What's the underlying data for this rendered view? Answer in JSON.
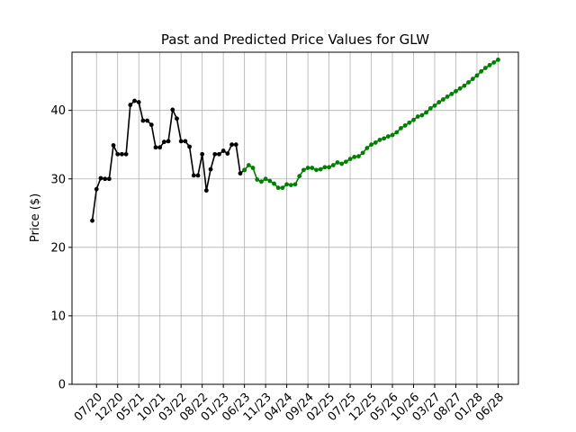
{
  "chart_data": {
    "type": "line",
    "title": "Past and Predicted Price Values for GLW",
    "y_label": "Price ($)",
    "x": [
      "06/20",
      "07/20",
      "08/20",
      "09/20",
      "10/20",
      "11/20",
      "12/20",
      "01/21",
      "02/21",
      "03/21",
      "04/21",
      "05/21",
      "06/21",
      "07/21",
      "08/21",
      "09/21",
      "10/21",
      "11/21",
      "12/21",
      "01/22",
      "02/22",
      "03/22",
      "04/22",
      "05/22",
      "06/22",
      "07/22",
      "08/22",
      "09/22",
      "10/22",
      "11/22",
      "12/22",
      "01/23",
      "02/23",
      "03/23",
      "04/23",
      "05/23",
      "06/23",
      "07/23",
      "08/23",
      "09/23",
      "10/23",
      "11/23",
      "12/23",
      "01/24",
      "02/24",
      "03/24",
      "04/24",
      "05/24",
      "06/24",
      "07/24",
      "08/24",
      "09/24",
      "10/24",
      "11/24",
      "12/24",
      "01/25",
      "02/25",
      "03/25",
      "04/25",
      "05/25",
      "06/25",
      "07/25",
      "08/25",
      "09/25",
      "10/25",
      "11/25",
      "12/25",
      "01/26",
      "02/26",
      "03/26",
      "04/26",
      "05/26",
      "06/26",
      "07/26",
      "08/26",
      "09/26",
      "10/26",
      "11/26",
      "12/26",
      "01/27",
      "02/27",
      "03/27",
      "04/27",
      "05/27",
      "06/27",
      "07/27",
      "08/27",
      "09/27",
      "10/27",
      "11/27",
      "12/27",
      "01/28",
      "02/28",
      "03/28",
      "04/28",
      "05/28",
      "06/28"
    ],
    "series": [
      {
        "color": "black",
        "values": [
          23.9,
          28.5,
          30.1,
          30.0,
          30.0,
          34.9,
          33.6,
          33.6,
          33.6,
          40.8,
          41.4,
          41.2,
          38.5,
          38.5,
          37.9,
          34.6,
          34.6,
          35.4,
          35.5,
          40.1,
          38.8,
          35.5,
          35.5,
          34.7,
          30.5,
          30.5,
          33.6,
          28.3,
          31.4,
          33.6,
          33.6,
          34.1,
          33.7,
          35.0,
          35.0,
          30.8,
          31.3,
          null,
          null,
          null,
          null,
          null,
          null,
          null,
          null,
          null,
          null,
          null,
          null,
          null,
          null,
          null,
          null,
          null,
          null,
          null,
          null,
          null,
          null,
          null,
          null,
          null,
          null,
          null,
          null,
          null,
          null,
          null,
          null,
          null,
          null,
          null,
          null,
          null,
          null,
          null,
          null,
          null,
          null,
          null,
          null,
          null,
          null,
          null,
          null,
          null,
          null,
          null,
          null,
          null,
          null,
          null,
          null,
          null,
          null,
          null,
          null
        ]
      },
      {
        "color": "green",
        "values": [
          null,
          null,
          null,
          null,
          null,
          null,
          null,
          null,
          null,
          null,
          null,
          null,
          null,
          null,
          null,
          null,
          null,
          null,
          null,
          null,
          null,
          null,
          null,
          null,
          null,
          null,
          null,
          null,
          null,
          null,
          null,
          null,
          null,
          null,
          null,
          null,
          31.3,
          32.0,
          31.6,
          29.9,
          29.6,
          30.0,
          29.7,
          29.3,
          28.7,
          28.7,
          29.2,
          29.1,
          29.2,
          30.4,
          31.3,
          31.6,
          31.6,
          31.3,
          31.4,
          31.7,
          31.7,
          32.0,
          32.4,
          32.2,
          32.5,
          32.9,
          33.2,
          33.3,
          33.8,
          34.5,
          35.0,
          35.3,
          35.7,
          35.9,
          36.2,
          36.4,
          36.8,
          37.4,
          37.8,
          38.2,
          38.6,
          39.1,
          39.3,
          39.7,
          40.3,
          40.7,
          41.2,
          41.6,
          42.0,
          42.4,
          42.8,
          43.2,
          43.6,
          44.1,
          44.6,
          45.1,
          45.7,
          46.2,
          46.6,
          47.0,
          47.4
        ]
      }
    ],
    "xticks": [
      "07/20",
      "12/20",
      "05/21",
      "10/21",
      "03/22",
      "08/22",
      "01/23",
      "06/23",
      "11/23",
      "04/24",
      "09/24",
      "02/25",
      "07/25",
      "12/25",
      "05/26",
      "10/26",
      "03/27",
      "08/27",
      "01/28",
      "06/28"
    ],
    "ylim": [
      0,
      48.5
    ],
    "yticks": [
      0,
      10,
      20,
      30,
      40
    ],
    "grid": true
  }
}
